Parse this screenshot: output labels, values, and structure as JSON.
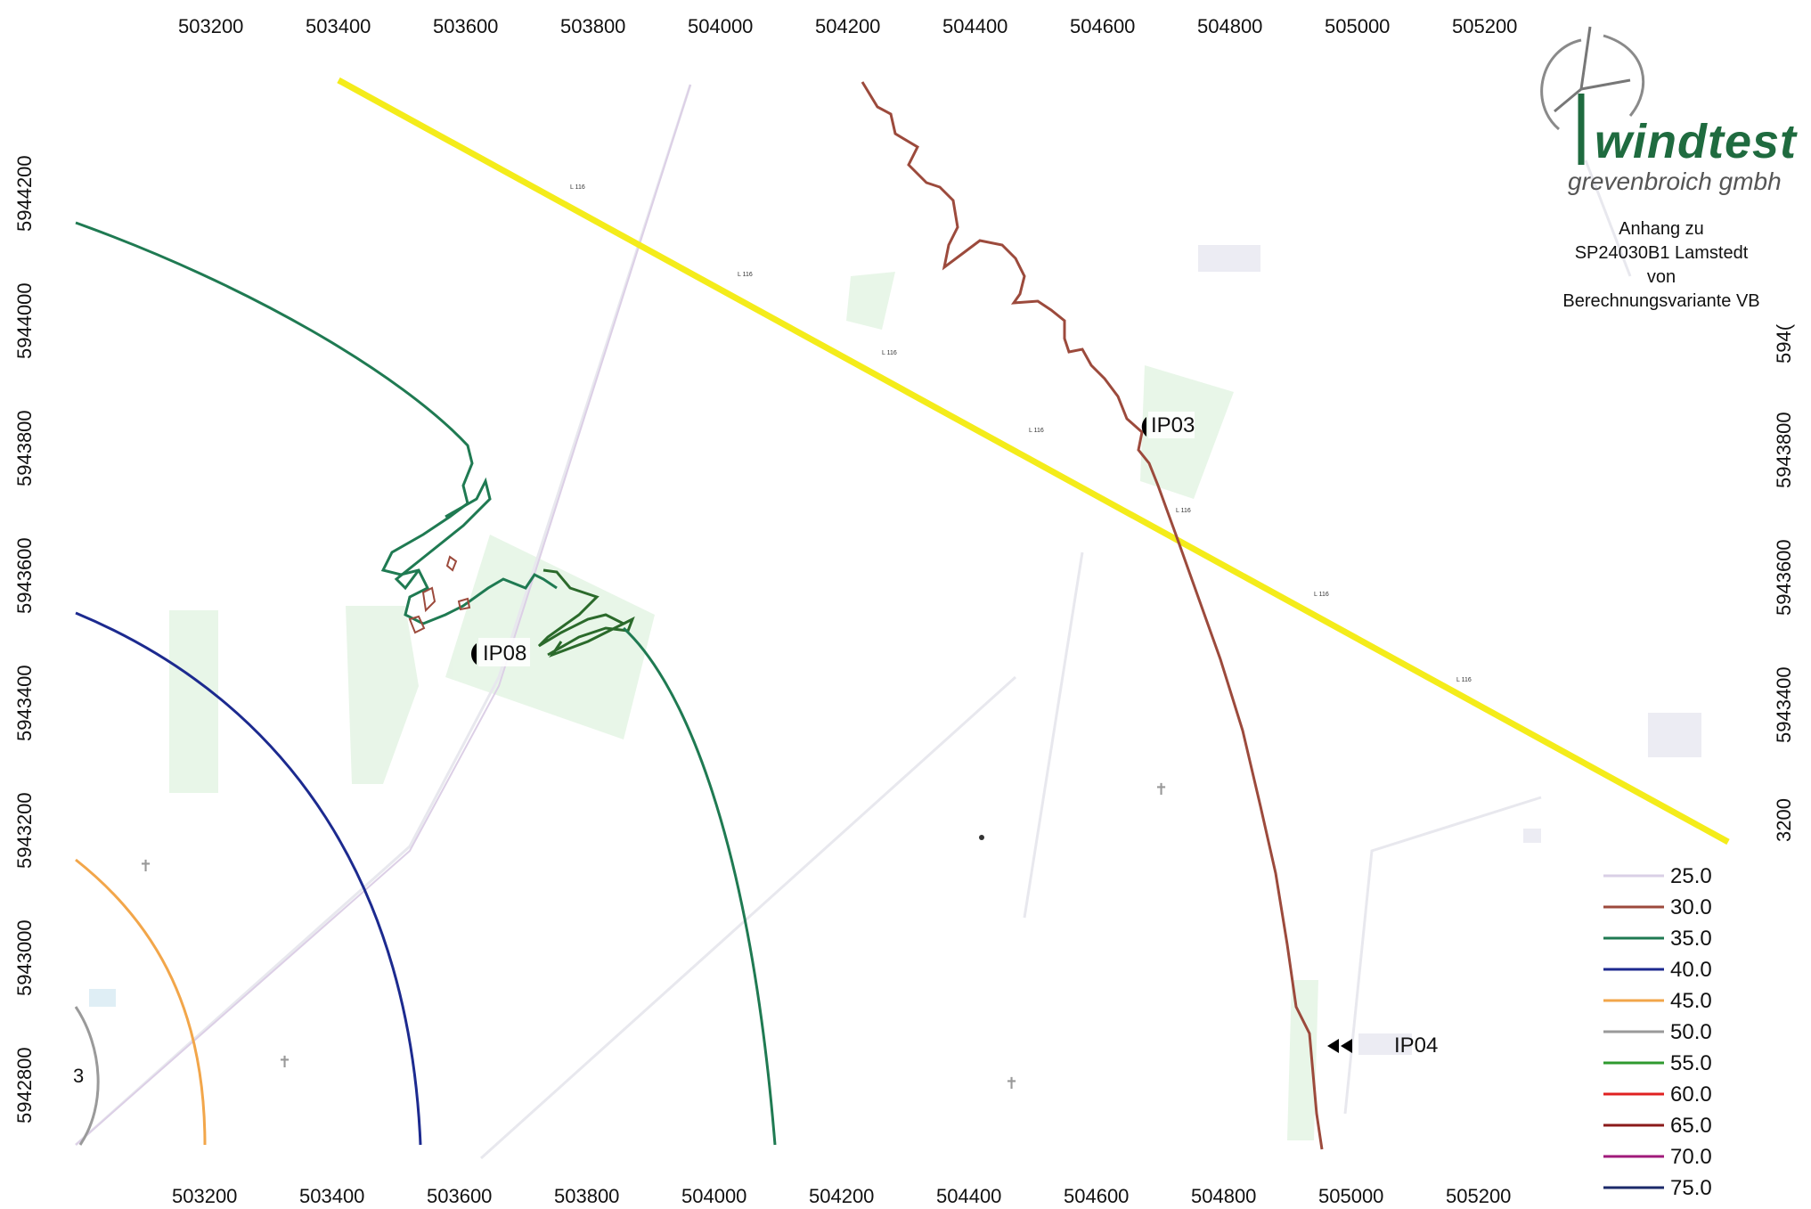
{
  "x_ticks_top": [
    "503200",
    "503400",
    "503600",
    "503800",
    "504000",
    "504200",
    "504400",
    "504600",
    "504800",
    "505000",
    "505200"
  ],
  "x_ticks_bottom": [
    "503200",
    "503400",
    "503600",
    "503800",
    "504000",
    "504200",
    "504400",
    "504600",
    "504800",
    "505000",
    "505200"
  ],
  "y_ticks_left": [
    "5944200",
    "5944000",
    "5943800",
    "5943600",
    "5943400",
    "5943200",
    "5943000",
    "5942800"
  ],
  "y_ticks_right": [
    "5943800",
    "5943600",
    "5943400"
  ],
  "y_ticks_right_cut": {
    "top": "594(",
    "bottom": "3200"
  },
  "x_ticks_top_cut": "504000",
  "edge_digit": "3",
  "logo": {
    "brand": "windtest",
    "sub": "grevenbroich gmbh"
  },
  "annex": {
    "line1": "Anhang zu",
    "line2": "SP24030B1 Lamstedt",
    "line3": "von",
    "line4": "Berechnungsvariante VB"
  },
  "receivers": [
    {
      "id": "IP03",
      "label": "IP03"
    },
    {
      "id": "IP08",
      "label": "IP08"
    },
    {
      "id": "IP04",
      "label": "IP04"
    }
  ],
  "road_label": "L 116",
  "legend": [
    {
      "label": "25.0",
      "color": "#d9cfe6"
    },
    {
      "label": "30.0",
      "color": "#9c4a3c"
    },
    {
      "label": "35.0",
      "color": "#1f7a52"
    },
    {
      "label": "40.0",
      "color": "#1c2a8f"
    },
    {
      "label": "45.0",
      "color": "#f2a64a"
    },
    {
      "label": "50.0",
      "color": "#9a9a9a"
    },
    {
      "label": "55.0",
      "color": "#2f9a2f"
    },
    {
      "label": "60.0",
      "color": "#e02020"
    },
    {
      "label": "65.0",
      "color": "#8b1a1a"
    },
    {
      "label": "70.0",
      "color": "#a01a7a"
    },
    {
      "label": "75.0",
      "color": "#1c2a6a"
    }
  ],
  "colors": {
    "road": "#f4ec1a",
    "fields": "#e3f4e3",
    "buildings": "#ececf2",
    "boundary": "#d9cfe6"
  }
}
